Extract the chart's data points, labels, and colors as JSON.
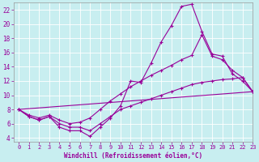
{
  "xlabel": "Windchill (Refroidissement éolien,°C)",
  "xlim": [
    -0.5,
    23
  ],
  "ylim": [
    3.5,
    23.0
  ],
  "yticks": [
    4,
    6,
    8,
    10,
    12,
    14,
    16,
    18,
    20,
    22
  ],
  "xticks": [
    0,
    1,
    2,
    3,
    4,
    5,
    6,
    7,
    8,
    9,
    10,
    11,
    12,
    13,
    14,
    15,
    16,
    17,
    18,
    19,
    20,
    21,
    22,
    23
  ],
  "bg_color": "#c8eef0",
  "grid_color": "#aed8dc",
  "line_color": "#990099",
  "line1_x": [
    0,
    1,
    2,
    3,
    4,
    5,
    6,
    7,
    8,
    9,
    10,
    11,
    12,
    13,
    14,
    15,
    16,
    17,
    18,
    19,
    20,
    21,
    22,
    23
  ],
  "line1_y": [
    8.0,
    7.0,
    6.5,
    7.0,
    5.5,
    5.0,
    5.0,
    4.2,
    5.5,
    6.8,
    8.5,
    12.0,
    11.8,
    14.5,
    17.5,
    19.8,
    22.5,
    22.8,
    19.0,
    15.8,
    15.5,
    13.0,
    12.0,
    10.5
  ],
  "line2_x": [
    0,
    1,
    2,
    3,
    4,
    5,
    6,
    7,
    8,
    9,
    10,
    11,
    12,
    13,
    14,
    15,
    16,
    17,
    18,
    19,
    20,
    21,
    22,
    23
  ],
  "line2_y": [
    8.0,
    7.2,
    6.8,
    7.2,
    6.5,
    6.0,
    6.2,
    6.8,
    8.0,
    9.2,
    10.2,
    11.2,
    12.0,
    12.8,
    13.5,
    14.2,
    15.0,
    15.6,
    18.5,
    15.5,
    15.0,
    13.5,
    12.5,
    10.5
  ],
  "line3_x": [
    0,
    23
  ],
  "line3_y": [
    8.0,
    10.5
  ],
  "line4_x": [
    0,
    1,
    2,
    3,
    4,
    5,
    6,
    7,
    8,
    9,
    10,
    11,
    12,
    13,
    14,
    15,
    16,
    17,
    18,
    19,
    20,
    21,
    22,
    23
  ],
  "line4_y": [
    8.0,
    7.0,
    6.5,
    7.0,
    6.0,
    5.5,
    5.5,
    5.0,
    6.0,
    7.0,
    8.0,
    8.5,
    9.0,
    9.5,
    10.0,
    10.5,
    11.0,
    11.5,
    11.8,
    12.0,
    12.2,
    12.3,
    12.5,
    10.5
  ]
}
